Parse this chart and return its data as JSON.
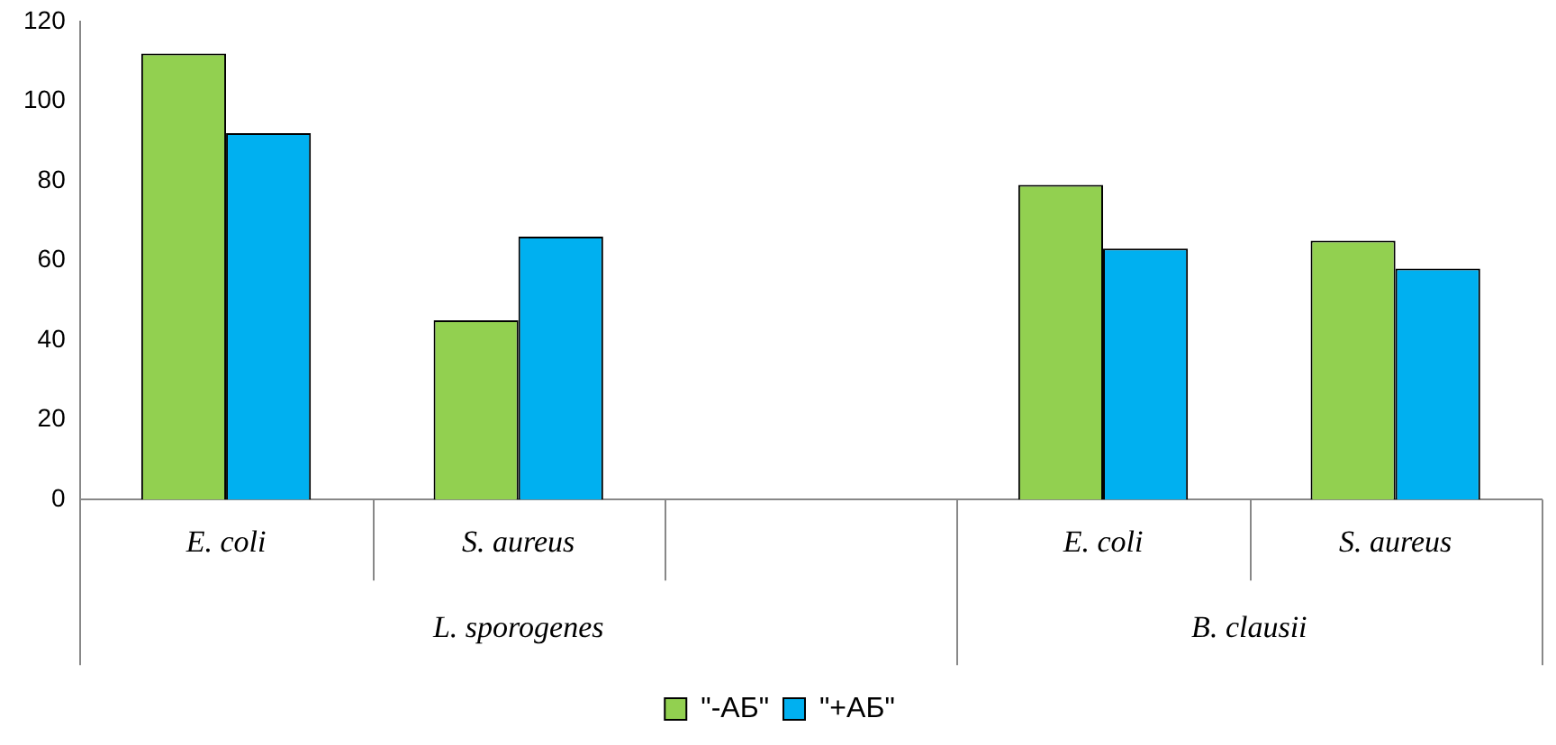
{
  "chart_data": {
    "type": "bar",
    "categories": [
      "E. coli",
      "S. aureus",
      null,
      "E. coli",
      "S. aureus"
    ],
    "series": [
      {
        "name": "\"-АБ\"",
        "color": "#92d050",
        "values": [
          112,
          45,
          null,
          79,
          65
        ]
      },
      {
        "name": "\"+АБ\"",
        "color": "#00b0f0",
        "values": [
          92,
          66,
          null,
          63,
          58
        ]
      }
    ],
    "annotations": [
      "L. sporogenes",
      "B. clausii"
    ],
    "ylim": [
      0,
      120
    ],
    "yticks": [
      0,
      20,
      40,
      60,
      80,
      100,
      120
    ],
    "grid": false,
    "legend": "bottom"
  }
}
